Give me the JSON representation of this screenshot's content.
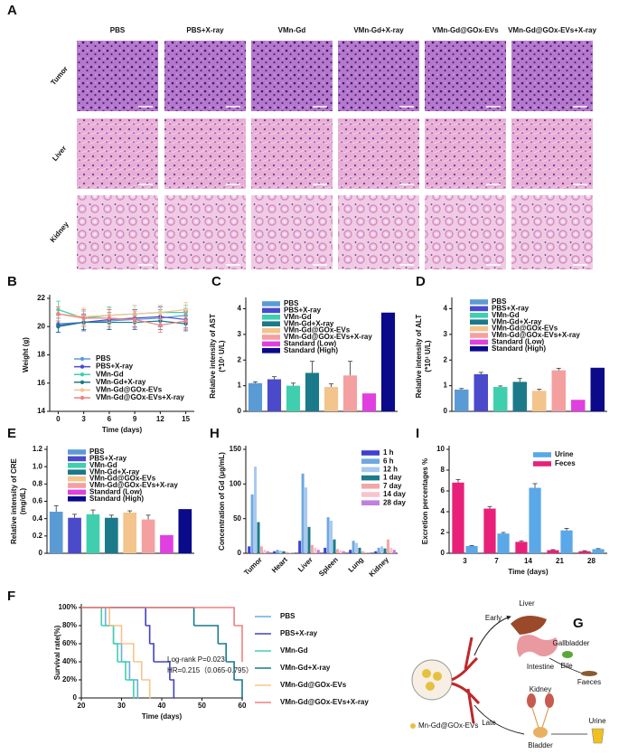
{
  "histology": {
    "panel": "A",
    "columns": [
      "PBS",
      "PBS+X-ray",
      "VMn-Gd",
      "VMn-Gd+X-ray",
      "VMn-Gd@GOx-EVs",
      "VMn-Gd@GOx-EVs+X-ray"
    ],
    "rows": [
      "Tumor",
      "Liver",
      "Kidney"
    ]
  },
  "chart_data": [
    {
      "panel": "B",
      "type": "line",
      "xlabel": "Time (days)",
      "ylabel": "Weight (g)",
      "x": [
        0,
        3,
        6,
        9,
        12,
        15
      ],
      "xlim": [
        -1,
        16
      ],
      "ylim": [
        14,
        22
      ],
      "xticks": [
        0,
        3,
        6,
        9,
        12,
        15
      ],
      "yticks": [
        14,
        16,
        18,
        20,
        22
      ],
      "legend": "lower center",
      "series": [
        {
          "name": "PBS",
          "color": "#5b9bd5",
          "values": [
            20.2,
            20.3,
            20.4,
            20.5,
            20.6,
            20.8
          ],
          "errors": [
            0.6,
            0.5,
            0.6,
            0.7,
            0.6,
            0.5
          ]
        },
        {
          "name": "PBS+X-ray",
          "color": "#4a4acb",
          "values": [
            20.1,
            20.3,
            20.5,
            20.6,
            20.7,
            20.5
          ],
          "errors": [
            0.5,
            0.6,
            0.7,
            0.6,
            0.7,
            0.6
          ]
        },
        {
          "name": "VMn-Gd",
          "color": "#3fcfae",
          "values": [
            21.2,
            20.6,
            20.8,
            20.9,
            21.0,
            21.0
          ],
          "errors": [
            0.6,
            0.5,
            0.6,
            0.6,
            0.5,
            0.5
          ]
        },
        {
          "name": "VMn-Gd+X-ray",
          "color": "#1b7a8a",
          "values": [
            20.0,
            20.3,
            20.3,
            20.3,
            20.4,
            20.2
          ],
          "errors": [
            0.4,
            0.5,
            0.5,
            0.5,
            0.6,
            0.5
          ]
        },
        {
          "name": "VMn-Gd@GOx-EVs",
          "color": "#f3c48c",
          "values": [
            20.9,
            20.7,
            20.8,
            20.9,
            21.0,
            21.2
          ],
          "errors": [
            0.5,
            0.6,
            0.5,
            0.6,
            0.5,
            0.5
          ]
        },
        {
          "name": "VMn-Gd@GOx-EVs+X-ray",
          "color": "#f08080",
          "values": [
            20.9,
            20.6,
            20.6,
            20.5,
            20.1,
            20.4
          ],
          "errors": [
            0.5,
            0.6,
            0.6,
            0.6,
            0.5,
            0.6
          ]
        }
      ]
    },
    {
      "panel": "C",
      "type": "bar",
      "ylabel": "Relative intensity of  AST",
      "ylabel2": "(*10¹ U/L)",
      "ylim": [
        0,
        4.3
      ],
      "yticks": [
        0,
        1,
        2,
        3,
        4
      ],
      "categories": [
        "PBS",
        "PBS+X-ray",
        "VMn-Gd",
        "VMn-Gd+X-ray",
        "VMn-Gd@GOx-EVs",
        "VMn-Gd@GOx-EVs+X-ray",
        "Standard (Low)",
        "Standard (High)"
      ],
      "colors": [
        "#5b9bd5",
        "#4a4acb",
        "#3fcfae",
        "#1b7a8a",
        "#f3c48c",
        "#f4a0a0",
        "#e040e0",
        "#0a0a8a"
      ],
      "values": [
        1.1,
        1.25,
        1.0,
        1.5,
        0.95,
        1.4,
        0.7,
        3.85
      ],
      "errors": [
        0.05,
        0.1,
        0.1,
        0.45,
        0.12,
        0.55,
        null,
        null
      ]
    },
    {
      "panel": "D",
      "type": "bar",
      "ylabel": "Relative intensity of  ALT",
      "ylabel2": "(*10¹ U/L)",
      "ylim": [
        0,
        4.3
      ],
      "yticks": [
        0,
        1,
        2,
        3,
        4
      ],
      "categories": [
        "PBS",
        "PBS+X-ray",
        "VMn-Gd",
        "VMn-Gd+X-ray",
        "VMn-Gd@GOx-EVs",
        "VMn-Gd@GOx-EVs+X-ray",
        "Standard (Low)",
        "Standard (High)"
      ],
      "colors": [
        "#5b9bd5",
        "#4a4acb",
        "#3fcfae",
        "#1b7a8a",
        "#f3c48c",
        "#f4a0a0",
        "#e040e0",
        "#0a0a8a"
      ],
      "values": [
        0.85,
        1.45,
        0.95,
        1.15,
        0.8,
        1.6,
        0.45,
        1.7
      ],
      "errors": [
        0.04,
        0.07,
        0.04,
        0.13,
        0.06,
        0.08,
        null,
        null
      ]
    },
    {
      "panel": "E",
      "type": "bar",
      "ylabel": "Relative intensity of CRE",
      "ylabel2": "(mg/dL)",
      "ylim": [
        0,
        1.2
      ],
      "yticks": [
        0,
        0.2,
        0.4,
        0.6,
        0.8,
        {
          "value": 1,
          "label": "1.0"
        },
        1.2
      ],
      "categories": [
        "PBS",
        "PBS+X-ray",
        "VMn-Gd",
        "VMn-Gd+X-ray",
        "VMn-Gd@GOx-EVs",
        "VMn-Gd@GOx-EVs+X-ray",
        "Standard (Low)",
        "Standard (High)"
      ],
      "colors": [
        "#5b9bd5",
        "#4a4acb",
        "#3fcfae",
        "#1b7a8a",
        "#f3c48c",
        "#f4a0a0",
        "#e040e0",
        "#0a0a8a"
      ],
      "values": [
        0.48,
        0.41,
        0.45,
        0.41,
        0.47,
        0.39,
        0.21,
        0.51
      ],
      "errors": [
        0.07,
        0.04,
        0.05,
        0.03,
        0.02,
        0.05,
        null,
        null
      ]
    },
    {
      "panel": "H",
      "type": "bar",
      "ylabel": "Concentration of Gd (μg/mL)",
      "ylim": [
        0,
        150
      ],
      "yticks": [
        0,
        50,
        100,
        150
      ],
      "categories": [
        "Tumor",
        "Heart",
        "Liver",
        "Spleen",
        "Lung",
        "Kidney"
      ],
      "series": [
        {
          "name": "1 h",
          "color": "#4040d0",
          "values": [
            10,
            3,
            18,
            8,
            5,
            3
          ]
        },
        {
          "name": "6 h",
          "color": "#6fa8e0",
          "values": [
            85,
            5,
            115,
            52,
            18,
            8
          ]
        },
        {
          "name": "12 h",
          "color": "#a8c8f0",
          "values": [
            125,
            4,
            95,
            47,
            15,
            10
          ]
        },
        {
          "name": "1 day",
          "color": "#1a7a8a",
          "values": [
            45,
            3,
            38,
            20,
            8,
            7
          ]
        },
        {
          "name": "7 day",
          "color": "#f4a6a6",
          "values": [
            10,
            2,
            12,
            6,
            3,
            20
          ]
        },
        {
          "name": "14 day",
          "color": "#f8c4cc",
          "values": [
            5,
            1,
            8,
            4,
            2,
            8
          ]
        },
        {
          "name": "28 day",
          "color": "#c080e0",
          "values": [
            3,
            1,
            5,
            3,
            1,
            5
          ]
        }
      ]
    },
    {
      "panel": "I",
      "type": "bar",
      "ylabel": "Excretion percentages %",
      "xlabel": "Time (days)",
      "ylim": [
        0,
        10
      ],
      "yticks": [
        0,
        2,
        4,
        6,
        8,
        10
      ],
      "categories": [
        "3",
        "7",
        "14",
        "21",
        "28"
      ],
      "series": [
        {
          "name": "Urine",
          "color": "#5aa8e8",
          "values": [
            0.7,
            1.9,
            6.3,
            2.2,
            0.4
          ],
          "errors": [
            0.05,
            0.1,
            0.4,
            0.2,
            0.05
          ]
        },
        {
          "name": "Feces",
          "color": "#e8207a",
          "values": [
            6.8,
            4.3,
            1.1,
            0.3,
            0.2
          ],
          "errors": [
            0.3,
            0.2,
            0.1,
            0.05,
            0.05
          ]
        }
      ]
    },
    {
      "panel": "F",
      "type": "line",
      "step": true,
      "xlabel": "Time (days)",
      "ylabel": "Survival rate(%)",
      "xlim": [
        20,
        60
      ],
      "ylim": [
        0,
        100
      ],
      "xticks": [
        20,
        30,
        40,
        50,
        60
      ],
      "yticks": [
        0,
        {
          "value": 20,
          "label": "20%"
        },
        {
          "value": 40,
          "label": "40%"
        },
        {
          "value": 60,
          "label": "60%"
        },
        {
          "value": 80,
          "label": "80%"
        },
        {
          "value": 100,
          "label": "100%"
        }
      ],
      "annotations": [
        "Log-rank P=0.023",
        "HR=0.215（0.065-0.795）"
      ],
      "series": [
        {
          "name": "PBS",
          "color": "#6aaee0",
          "x": [
            20,
            26,
            28,
            30,
            32,
            34
          ],
          "values": [
            100,
            80,
            60,
            40,
            20,
            0
          ]
        },
        {
          "name": "PBS+X-ray",
          "color": "#4040c8",
          "x": [
            20,
            36,
            37,
            38,
            42,
            43
          ],
          "values": [
            100,
            80,
            60,
            40,
            20,
            0
          ]
        },
        {
          "name": "VMn-Gd",
          "color": "#40d0b0",
          "x": [
            20,
            25,
            28,
            29,
            31,
            33
          ],
          "values": [
            100,
            80,
            60,
            40,
            20,
            0
          ]
        },
        {
          "name": "VMn-Gd+X-ray",
          "color": "#1a7a8a",
          "x": [
            20,
            48,
            54,
            56,
            58,
            60
          ],
          "values": [
            100,
            80,
            60,
            40,
            20,
            0
          ]
        },
        {
          "name": "VMn-Gd@GOx-EVs",
          "color": "#f5c58a",
          "x": [
            20,
            27,
            30,
            33,
            35,
            37
          ],
          "values": [
            100,
            80,
            60,
            40,
            20,
            0
          ]
        },
        {
          "name": "VMn-Gd@GOx-EVs+X-ray",
          "color": "#f08080",
          "x": [
            20,
            58,
            60
          ],
          "values": [
            100,
            80,
            40
          ]
        }
      ]
    }
  ],
  "diagram": {
    "panel": "G",
    "labels": [
      "Liver",
      "Early",
      "Gallbladder",
      "Intestine",
      "Bile",
      "Faeces",
      "Kidney",
      "Late",
      "Bladder",
      "Urine",
      "Mn-Gd@GOx-EVs"
    ]
  }
}
